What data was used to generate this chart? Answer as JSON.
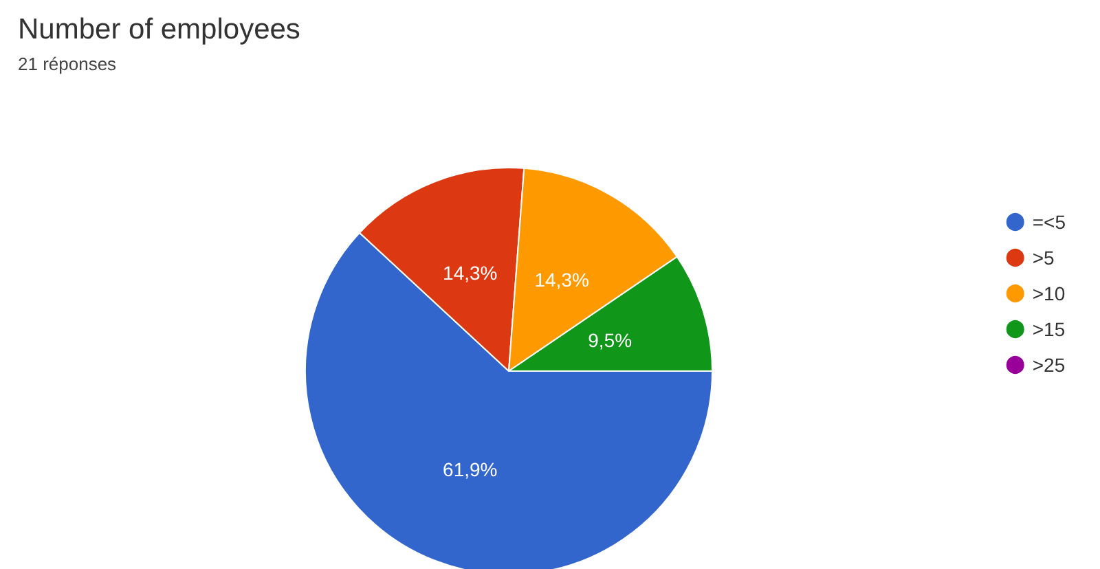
{
  "chart_data": {
    "type": "pie",
    "title": "Number of employees",
    "subtitle": "21 réponses",
    "categories": [
      "=<5",
      ">5",
      ">10",
      ">15",
      ">25"
    ],
    "values": [
      61.9,
      14.3,
      14.3,
      9.5,
      0
    ],
    "colors": [
      "#3366cc",
      "#dc3912",
      "#ff9900",
      "#109618",
      "#990099"
    ],
    "value_labels": [
      "61,9%",
      "14,3%",
      "14,3%",
      "9,5%",
      null
    ],
    "legend": "right"
  }
}
